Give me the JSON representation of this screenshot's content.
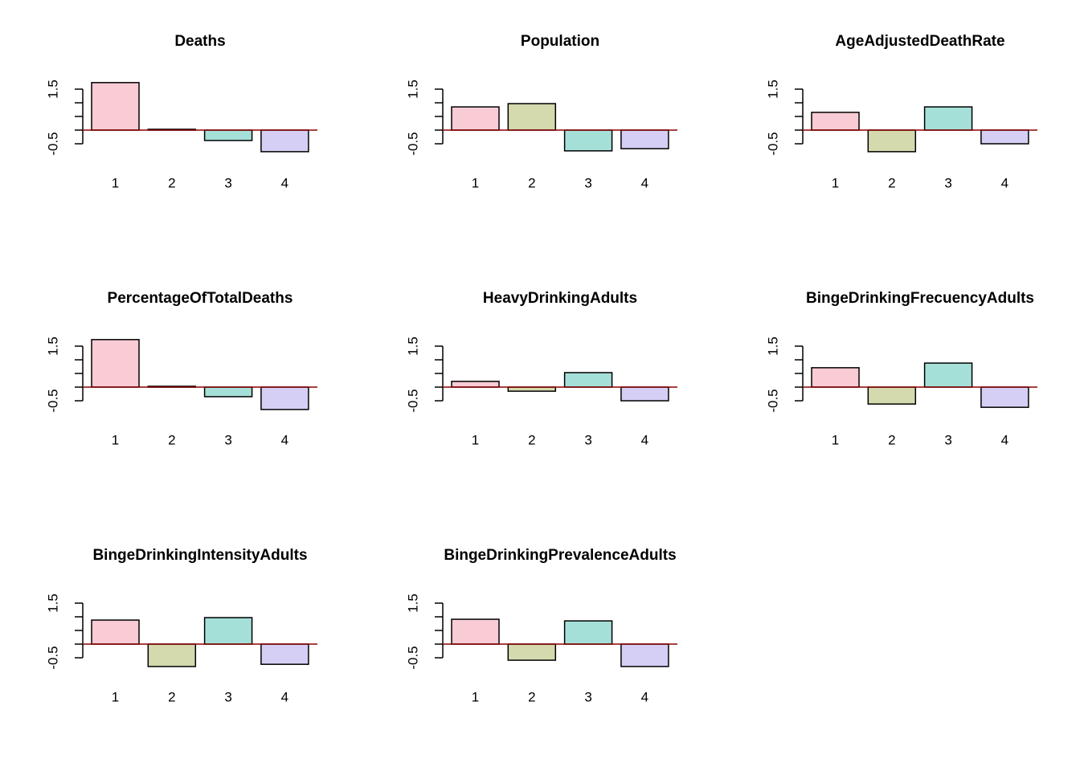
{
  "chart_data": [
    {
      "type": "bar",
      "title": "Deaths",
      "categories": [
        "1",
        "2",
        "3",
        "4"
      ],
      "values": [
        1.74,
        0.03,
        -0.38,
        -0.79
      ],
      "colors": [
        "#f8cbd5",
        "#d4d9ae",
        "#a5e0d8",
        "#d5cff5"
      ],
      "ylim": [
        -0.9,
        1.9
      ],
      "yticks": [
        -0.5,
        {
          "value": 0,
          "label": null
        },
        {
          "value": 0.5,
          "label": null
        },
        {
          "value": 1,
          "label": null
        },
        1.5
      ],
      "baseline_color": "#8b0000"
    },
    {
      "type": "bar",
      "title": "Population",
      "categories": [
        "1",
        "2",
        "3",
        "4"
      ],
      "values": [
        0.85,
        0.97,
        -0.76,
        -0.68
      ],
      "colors": [
        "#f8cbd5",
        "#d4d9ae",
        "#a5e0d8",
        "#d5cff5"
      ],
      "ylim": [
        -0.9,
        1.9
      ],
      "yticks": [
        -0.5,
        {
          "value": 0,
          "label": null
        },
        {
          "value": 0.5,
          "label": null
        },
        {
          "value": 1,
          "label": null
        },
        1.5
      ],
      "baseline_color": "#8b0000"
    },
    {
      "type": "bar",
      "title": "AgeAdjustedDeathRate",
      "categories": [
        "1",
        "2",
        "3",
        "4"
      ],
      "values": [
        0.65,
        -0.79,
        0.85,
        -0.5
      ],
      "colors": [
        "#f8cbd5",
        "#d4d9ae",
        "#a5e0d8",
        "#d5cff5"
      ],
      "ylim": [
        -0.9,
        1.9
      ],
      "yticks": [
        -0.5,
        {
          "value": 0,
          "label": null
        },
        {
          "value": 0.5,
          "label": null
        },
        {
          "value": 1,
          "label": null
        },
        1.5
      ],
      "baseline_color": "#8b0000"
    },
    {
      "type": "bar",
      "title": "PercentageOfTotalDeaths",
      "categories": [
        "1",
        "2",
        "3",
        "4"
      ],
      "values": [
        1.74,
        0.03,
        -0.35,
        -0.82
      ],
      "colors": [
        "#f8cbd5",
        "#d4d9ae",
        "#a5e0d8",
        "#d5cff5"
      ],
      "ylim": [
        -0.9,
        1.9
      ],
      "yticks": [
        -0.5,
        {
          "value": 0,
          "label": null
        },
        {
          "value": 0.5,
          "label": null
        },
        {
          "value": 1,
          "label": null
        },
        1.5
      ],
      "baseline_color": "#8b0000"
    },
    {
      "type": "bar",
      "title": "HeavyDrinkingAdults",
      "categories": [
        "1",
        "2",
        "3",
        "4"
      ],
      "values": [
        0.21,
        -0.15,
        0.53,
        -0.5
      ],
      "colors": [
        "#f8cbd5",
        "#d4d9ae",
        "#a5e0d8",
        "#d5cff5"
      ],
      "ylim": [
        -0.9,
        1.9
      ],
      "yticks": [
        -0.5,
        {
          "value": 0,
          "label": null
        },
        {
          "value": 0.5,
          "label": null
        },
        {
          "value": 1,
          "label": null
        },
        1.5
      ],
      "baseline_color": "#8b0000"
    },
    {
      "type": "bar",
      "title": "BingeDrinkingFrecuencyAdults",
      "categories": [
        "1",
        "2",
        "3",
        "4"
      ],
      "values": [
        0.71,
        -0.62,
        0.88,
        -0.74
      ],
      "colors": [
        "#f8cbd5",
        "#d4d9ae",
        "#a5e0d8",
        "#d5cff5"
      ],
      "ylim": [
        -0.9,
        1.9
      ],
      "yticks": [
        -0.5,
        {
          "value": 0,
          "label": null
        },
        {
          "value": 0.5,
          "label": null
        },
        {
          "value": 1,
          "label": null
        },
        1.5
      ],
      "baseline_color": "#8b0000"
    },
    {
      "type": "bar",
      "title": "BingeDrinkingIntensityAdults",
      "categories": [
        "1",
        "2",
        "3",
        "4"
      ],
      "values": [
        0.88,
        -0.82,
        0.97,
        -0.74
      ],
      "colors": [
        "#f8cbd5",
        "#d4d9ae",
        "#a5e0d8",
        "#d5cff5"
      ],
      "ylim": [
        -0.9,
        1.9
      ],
      "yticks": [
        -0.5,
        {
          "value": 0,
          "label": null
        },
        {
          "value": 0.5,
          "label": null
        },
        {
          "value": 1,
          "label": null
        },
        1.5
      ],
      "baseline_color": "#8b0000"
    },
    {
      "type": "bar",
      "title": "BingeDrinkingPrevalenceAdults",
      "categories": [
        "1",
        "2",
        "3",
        "4"
      ],
      "values": [
        0.91,
        -0.59,
        0.85,
        -0.82
      ],
      "colors": [
        "#f8cbd5",
        "#d4d9ae",
        "#a5e0d8",
        "#d5cff5"
      ],
      "ylim": [
        -0.9,
        1.9
      ],
      "yticks": [
        -0.5,
        {
          "value": 0,
          "label": null
        },
        {
          "value": 0.5,
          "label": null
        },
        {
          "value": 1,
          "label": null
        },
        1.5
      ],
      "baseline_color": "#8b0000"
    }
  ]
}
